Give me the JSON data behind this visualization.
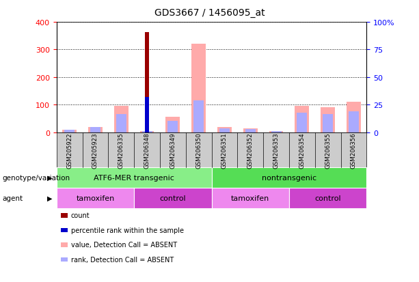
{
  "title": "GDS3667 / 1456095_at",
  "samples": [
    "GSM205922",
    "GSM205923",
    "GSM206335",
    "GSM206348",
    "GSM206349",
    "GSM206350",
    "GSM206351",
    "GSM206352",
    "GSM206353",
    "GSM206354",
    "GSM206355",
    "GSM206356"
  ],
  "count_values": [
    0,
    0,
    0,
    362,
    0,
    0,
    0,
    0,
    0,
    0,
    0,
    0
  ],
  "percentile_rank_values": [
    0,
    0,
    0,
    128,
    0,
    0,
    0,
    0,
    0,
    0,
    0,
    0
  ],
  "absent_value": [
    10,
    20,
    95,
    5,
    55,
    320,
    20,
    15,
    5,
    95,
    90,
    110
  ],
  "absent_rank": [
    8,
    18,
    65,
    3,
    40,
    115,
    15,
    12,
    3,
    70,
    65,
    75
  ],
  "ylim_left": [
    0,
    400
  ],
  "ylim_right": [
    0,
    100
  ],
  "yticks_left": [
    0,
    100,
    200,
    300,
    400
  ],
  "yticks_right": [
    0,
    25,
    50,
    75,
    100
  ],
  "yticklabels_right": [
    "0",
    "25",
    "50",
    "75",
    "100%"
  ],
  "color_count": "#990000",
  "color_percentile": "#0000cc",
  "color_absent_value": "#ffaaaa",
  "color_absent_rank": "#aaaaff",
  "group1_label": "ATF6-MER transgenic",
  "group2_label": "nontransgenic",
  "agent1a_label": "tamoxifen",
  "agent1b_label": "control",
  "agent2a_label": "tamoxifen",
  "agent2b_label": "control",
  "group1_color": "#88ee88",
  "group2_color": "#55dd55",
  "agent_tamoxifen_color": "#ee88ee",
  "agent_control_color": "#cc44cc",
  "genotype_label": "genotype/variation",
  "agent_label": "agent",
  "legend_items": [
    "count",
    "percentile rank within the sample",
    "value, Detection Call = ABSENT",
    "rank, Detection Call = ABSENT"
  ],
  "legend_colors": [
    "#990000",
    "#0000cc",
    "#ffaaaa",
    "#aaaaff"
  ],
  "background_color": "#ffffff"
}
